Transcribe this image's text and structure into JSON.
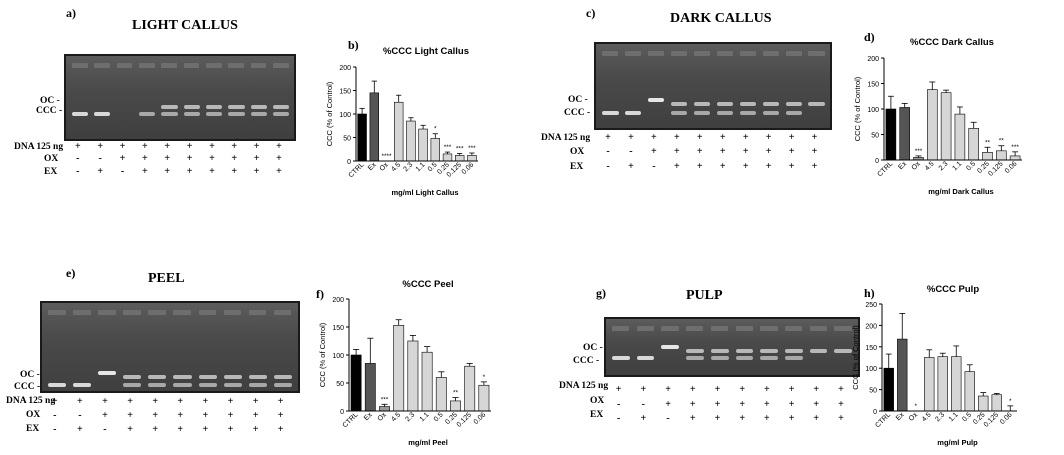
{
  "gels": [
    {
      "letter": "a)",
      "title": "LIGHT CALLUS",
      "row_labels": [
        "DNA 125 ng",
        "OX",
        "EX"
      ],
      "band_labels": [
        "OC -",
        "CCC -"
      ],
      "signs": [
        [
          "+",
          "+",
          "+",
          "+",
          "+",
          "+",
          "+",
          "+",
          "+",
          "+"
        ],
        [
          "-",
          "-",
          "+",
          "+",
          "+",
          "+",
          "+",
          "+",
          "+",
          "+"
        ],
        [
          "-",
          "+",
          "-",
          "+",
          "+",
          "+",
          "+",
          "+",
          "+",
          "+"
        ]
      ]
    },
    {
      "letter": "c)",
      "title": "DARK CALLUS",
      "row_labels": [
        "DNA 125 ng",
        "OX",
        "EX"
      ],
      "band_labels": [
        "OC -",
        "CCC -"
      ],
      "signs": [
        [
          "+",
          "+",
          "+",
          "+",
          "+",
          "+",
          "+",
          "+",
          "+",
          "+"
        ],
        [
          "-",
          "-",
          "+",
          "+",
          "+",
          "+",
          "+",
          "+",
          "+",
          "+"
        ],
        [
          "-",
          "+",
          "-",
          "+",
          "+",
          "+",
          "+",
          "+",
          "+",
          "+"
        ]
      ]
    },
    {
      "letter": "e)",
      "title": "PEEL",
      "row_labels": [
        "DNA 125 ng",
        "OX",
        "EX"
      ],
      "band_labels": [
        "OC -",
        "CCC -"
      ],
      "signs": [
        [
          "+",
          "+",
          "+",
          "+",
          "+",
          "+",
          "+",
          "+",
          "+",
          "+"
        ],
        [
          "-",
          "-",
          "+",
          "+",
          "+",
          "+",
          "+",
          "+",
          "+",
          "+"
        ],
        [
          "-",
          "+",
          "-",
          "+",
          "+",
          "+",
          "+",
          "+",
          "+",
          "+"
        ]
      ]
    },
    {
      "letter": "g)",
      "title": "PULP",
      "row_labels": [
        "DNA 125 ng",
        "OX",
        "EX"
      ],
      "band_labels": [
        "OC -",
        "CCC -"
      ],
      "signs": [
        [
          "+",
          "+",
          "+",
          "+",
          "+",
          "+",
          "+",
          "+",
          "+",
          "+"
        ],
        [
          "-",
          "-",
          "+",
          "+",
          "+",
          "+",
          "+",
          "+",
          "+",
          "+"
        ],
        [
          "-",
          "+",
          "-",
          "+",
          "+",
          "+",
          "+",
          "+",
          "+",
          "+"
        ]
      ]
    }
  ],
  "chart_data": [
    {
      "letter": "b)",
      "type": "bar",
      "title": "%CCC Light Callus",
      "xlabel": "mg/ml Light Callus",
      "ylabel": "CCC (% of Control)",
      "ylim": [
        0,
        200
      ],
      "yticks": [
        0,
        50,
        100,
        150,
        200
      ],
      "categories": [
        "CTRL",
        "Ex",
        "Ox",
        "4.5",
        "2.3",
        "1.1",
        "0.5",
        "0.25",
        "0.125",
        "0.06"
      ],
      "values": [
        100,
        145,
        0,
        125,
        85,
        68,
        48,
        15,
        12,
        12
      ],
      "errors": [
        12,
        25,
        0,
        15,
        7,
        8,
        10,
        4,
        4,
        5
      ],
      "annotations": [
        "",
        "",
        "****",
        "",
        "",
        "",
        "*",
        "***",
        "***",
        "***"
      ],
      "colors": [
        "#000000",
        "#555555",
        "#9a9a9a",
        "#d6d6d6",
        "#d6d6d6",
        "#d6d6d6",
        "#d6d6d6",
        "#d6d6d6",
        "#d6d6d6",
        "#d6d6d6"
      ]
    },
    {
      "letter": "d)",
      "type": "bar",
      "title": "%CCC Dark Callus",
      "xlabel": "mg/ml Dark Callus",
      "ylabel": "CCC (% of Control)",
      "ylim": [
        0,
        200
      ],
      "yticks": [
        0,
        50,
        100,
        150,
        200
      ],
      "categories": [
        "CTRL",
        "Ex",
        "Ox",
        "4.5",
        "2.3",
        "1.1",
        "0.5",
        "0.25",
        "0.125",
        "0.06"
      ],
      "values": [
        100,
        103,
        5,
        138,
        132,
        90,
        62,
        15,
        18,
        8
      ],
      "errors": [
        25,
        8,
        3,
        15,
        5,
        14,
        12,
        10,
        10,
        8
      ],
      "annotations": [
        "",
        "",
        "***",
        "",
        "",
        "",
        "",
        "**",
        "**",
        "***"
      ],
      "colors": [
        "#000000",
        "#555555",
        "#9a9a9a",
        "#d6d6d6",
        "#d6d6d6",
        "#d6d6d6",
        "#d6d6d6",
        "#d6d6d6",
        "#d6d6d6",
        "#d6d6d6"
      ]
    },
    {
      "letter": "f)",
      "type": "bar",
      "title": "%CCC Peel",
      "xlabel": "mg/ml Peel",
      "ylabel": "CCC (% of Control)",
      "ylim": [
        0,
        200
      ],
      "yticks": [
        0,
        50,
        100,
        150,
        200
      ],
      "categories": [
        "CTRL",
        "Ex",
        "Ox",
        "4.5",
        "2.3",
        "1.1",
        "0.5",
        "0.25",
        "0.125",
        "0.06"
      ],
      "values": [
        100,
        85,
        8,
        153,
        125,
        105,
        60,
        18,
        80,
        46
      ],
      "errors": [
        10,
        45,
        4,
        10,
        10,
        10,
        10,
        6,
        5,
        6
      ],
      "annotations": [
        "",
        "",
        "***",
        "",
        "",
        "",
        "",
        "**",
        "",
        "*"
      ],
      "colors": [
        "#000000",
        "#555555",
        "#9a9a9a",
        "#d6d6d6",
        "#d6d6d6",
        "#d6d6d6",
        "#d6d6d6",
        "#d6d6d6",
        "#d6d6d6",
        "#d6d6d6"
      ]
    },
    {
      "letter": "h)",
      "type": "bar",
      "title": "%CCC Pulp",
      "xlabel": "mg/ml Pulp",
      "ylabel": "CCC (% of Control)",
      "ylim": [
        0,
        250
      ],
      "yticks": [
        0,
        50,
        100,
        150,
        200,
        250
      ],
      "categories": [
        "CTRL",
        "Ex",
        "Ox",
        "4.5",
        "2.3",
        "1.1",
        "0.5",
        "0.25",
        "0.125",
        "0.06"
      ],
      "values": [
        100,
        168,
        0,
        125,
        127,
        127,
        92,
        35,
        38,
        0
      ],
      "errors": [
        33,
        60,
        0,
        18,
        8,
        25,
        16,
        8,
        3,
        12
      ],
      "annotations": [
        "",
        "",
        "*",
        "",
        "",
        "",
        "",
        "",
        "",
        "*"
      ],
      "colors": [
        "#000000",
        "#555555",
        "#9a9a9a",
        "#d6d6d6",
        "#d6d6d6",
        "#d6d6d6",
        "#d6d6d6",
        "#d6d6d6",
        "#d6d6d6",
        "#d6d6d6"
      ]
    }
  ]
}
